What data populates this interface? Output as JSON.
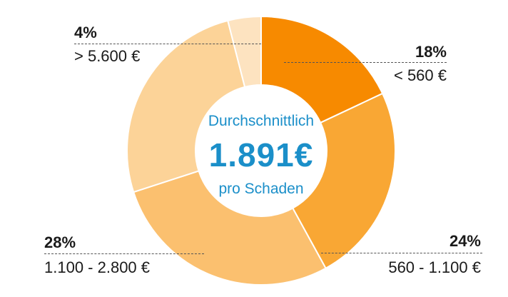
{
  "chart_data": {
    "type": "pie",
    "donut": true,
    "center_text": {
      "top": "Durchschnittlich",
      "value": "1.891€",
      "bottom": "pro Schaden"
    },
    "slices": [
      {
        "percent_label": "18%",
        "range": "< 560 €",
        "value": 18,
        "color": "#f78a00"
      },
      {
        "percent_label": "24%",
        "range": "560 - 1.100 €",
        "value": 24,
        "color": "#f9a734"
      },
      {
        "percent_label": "28%",
        "range": "1.100 - 2.800 €",
        "value": 28,
        "color": "#fbc06f"
      },
      {
        "percent_label": "4%",
        "range": "> 5.600 €",
        "value": 4,
        "color": "#fde3c0"
      }
    ],
    "other_slices": [
      {
        "value": 26,
        "color": "#fcd398"
      }
    ]
  }
}
